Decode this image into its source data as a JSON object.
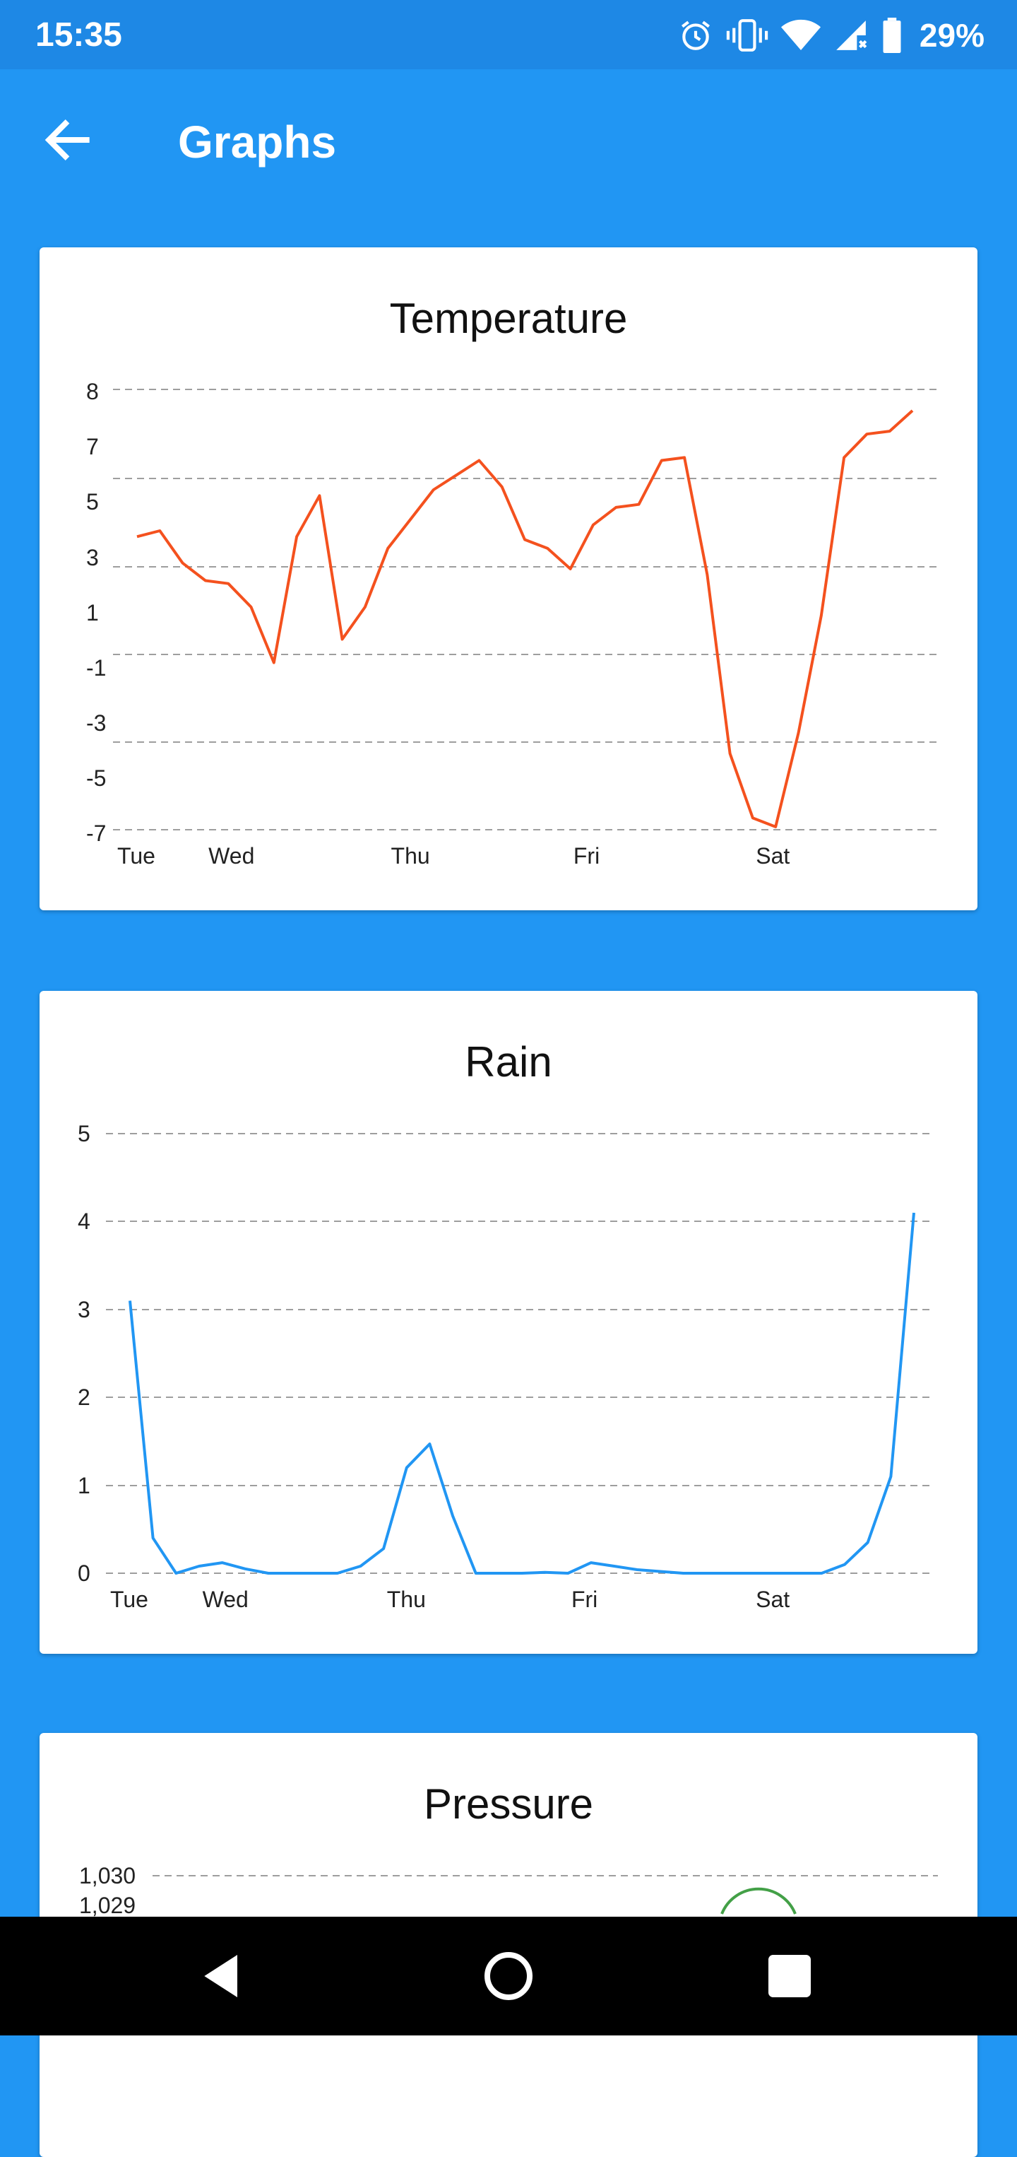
{
  "status_bar": {
    "time": "15:35",
    "icons": [
      "alarm-icon",
      "vibrate-icon",
      "wifi-icon",
      "signal-icon",
      "battery-icon"
    ],
    "battery": "29%"
  },
  "app_bar": {
    "title": "Graphs",
    "back_icon": "arrow-back-icon"
  },
  "colors": {
    "primary": "#2196f3",
    "status_bar": "#1e88e5",
    "temperature_line": "#f4511e",
    "rain_line": "#2196f3",
    "pressure_line": "#43a047"
  },
  "cards": {
    "temperature": {
      "title": "Temperature"
    },
    "rain": {
      "title": "Rain"
    },
    "pressure": {
      "title": "Pressure"
    }
  },
  "chart_data": [
    {
      "type": "line",
      "title": "Temperature",
      "xlabel": "",
      "ylabel": "",
      "y_tick_labels": [
        "8",
        "7",
        "5",
        "3",
        "1",
        "-1",
        "-3",
        "-5",
        "-7"
      ],
      "x_tick_labels": [
        "Tue",
        "Wed",
        "Thu",
        "Fri",
        "Sat"
      ],
      "x_tick_positions": [
        0,
        4,
        12,
        20,
        28
      ],
      "ylim": [
        -7,
        8
      ],
      "grid": true,
      "series": [
        {
          "color": "#f4511e",
          "values": [
            3.0,
            3.2,
            2.1,
            1.5,
            1.4,
            0.6,
            -1.3,
            3.0,
            4.4,
            -0.5,
            0.6,
            2.6,
            3.6,
            4.6,
            5.1,
            5.6,
            4.7,
            2.9,
            2.6,
            1.9,
            3.4,
            4.0,
            4.1,
            5.6,
            5.7,
            1.7,
            -4.4,
            -6.6,
            -6.9,
            -3.7,
            0.3,
            5.7,
            6.5,
            6.6,
            7.3
          ]
        }
      ]
    },
    {
      "type": "line",
      "title": "Rain",
      "xlabel": "",
      "ylabel": "",
      "y_tick_labels": [
        "5",
        "4",
        "3",
        "2",
        "1",
        "0"
      ],
      "x_tick_labels": [
        "Tue",
        "Wed",
        "Thu",
        "Fri",
        "Sat"
      ],
      "x_tick_positions": [
        0,
        4,
        12,
        20,
        28
      ],
      "ylim": [
        0,
        5
      ],
      "grid": true,
      "series": [
        {
          "color": "#2196f3",
          "values": [
            3.1,
            0.4,
            0.0,
            0.08,
            0.12,
            0.05,
            0.0,
            0.0,
            0.0,
            0.0,
            0.08,
            0.28,
            1.2,
            1.47,
            0.65,
            0.0,
            0.0,
            0.0,
            0.01,
            0.0,
            0.12,
            0.08,
            0.04,
            0.02,
            0.0,
            0.0,
            0.0,
            0.0,
            0.0,
            0.0,
            0.0,
            0.1,
            0.35,
            1.1,
            4.1
          ]
        }
      ]
    },
    {
      "type": "line",
      "title": "Pressure",
      "xlabel": "",
      "ylabel": "",
      "y_tick_labels": [
        "1,030",
        "1,029"
      ],
      "ylim": [
        1029,
        1030
      ],
      "grid": true,
      "series": [
        {
          "color": "#43a047",
          "values": []
        }
      ]
    }
  ]
}
